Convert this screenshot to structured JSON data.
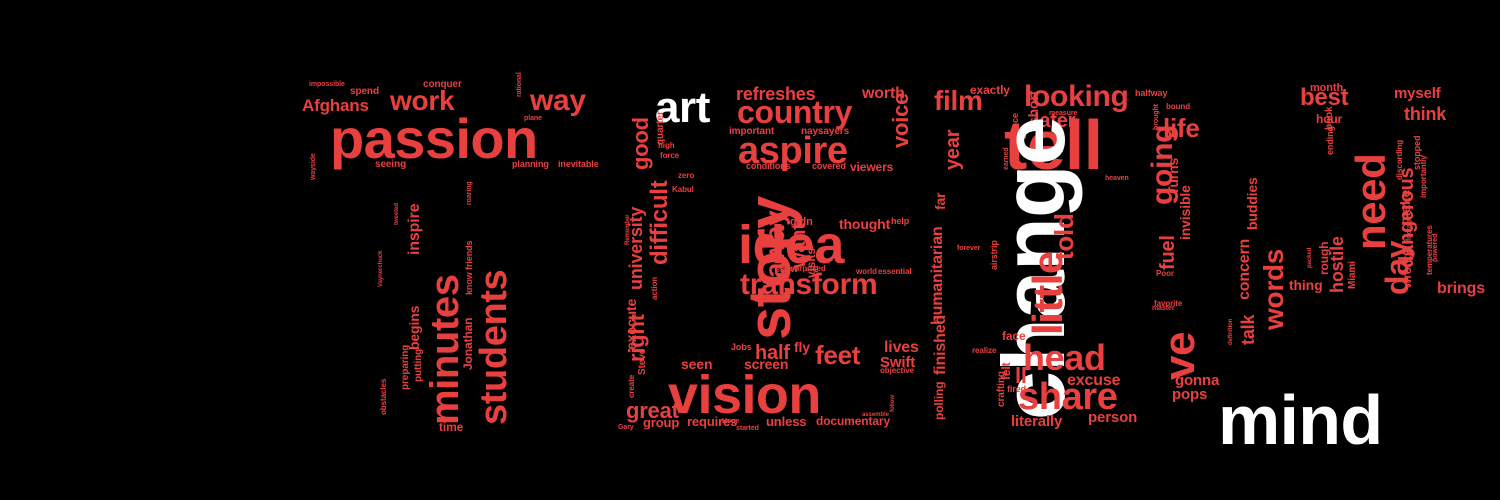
{
  "colors": {
    "background": "#000000",
    "red": "#e8403f",
    "white": "#ffffff"
  },
  "words": [
    {
      "text": "impossible",
      "c": "red"
    },
    {
      "text": "spend",
      "c": "red"
    },
    {
      "text": "conquer",
      "c": "red"
    },
    {
      "text": "Afghans",
      "c": "red"
    },
    {
      "text": "work",
      "c": "red"
    },
    {
      "text": "way",
      "c": "red"
    },
    {
      "text": "rational",
      "c": "red"
    },
    {
      "text": "plane",
      "c": "red"
    },
    {
      "text": "passion",
      "c": "red"
    },
    {
      "text": "wayside",
      "c": "red"
    },
    {
      "text": "seeing",
      "c": "red"
    },
    {
      "text": "planning",
      "c": "red"
    },
    {
      "text": "inevitable",
      "c": "red"
    },
    {
      "text": "minutes",
      "c": "red"
    },
    {
      "text": "students",
      "c": "red"
    },
    {
      "text": "inspire",
      "c": "red"
    },
    {
      "text": "begins",
      "c": "red"
    },
    {
      "text": "preparing",
      "c": "red"
    },
    {
      "text": "putting",
      "c": "red"
    },
    {
      "text": "obstacles",
      "c": "red"
    },
    {
      "text": "Jonathan",
      "c": "red"
    },
    {
      "text": "know friends",
      "c": "red"
    },
    {
      "text": "Vaynerchuck",
      "c": "red"
    },
    {
      "text": "tweeted",
      "c": "red"
    },
    {
      "text": "roaring",
      "c": "red"
    },
    {
      "text": "time",
      "c": "red"
    },
    {
      "text": "art",
      "c": "white"
    },
    {
      "text": "refreshes",
      "c": "red"
    },
    {
      "text": "worth",
      "c": "red"
    },
    {
      "text": "country",
      "c": "red"
    },
    {
      "text": "important",
      "c": "red"
    },
    {
      "text": "naysayers",
      "c": "red"
    },
    {
      "text": "aspire",
      "c": "red"
    },
    {
      "text": "voice",
      "c": "red"
    },
    {
      "text": "conditions",
      "c": "red"
    },
    {
      "text": "covered",
      "c": "red"
    },
    {
      "text": "viewers",
      "c": "red"
    },
    {
      "text": "story",
      "c": "red"
    },
    {
      "text": "difficult",
      "c": "red"
    },
    {
      "text": "good",
      "c": "red"
    },
    {
      "text": "university",
      "c": "red"
    },
    {
      "text": "execute",
      "c": "red"
    },
    {
      "text": "right",
      "c": "red"
    },
    {
      "text": "quarter",
      "c": "red"
    },
    {
      "text": "high",
      "c": "red"
    },
    {
      "text": "force",
      "c": "red"
    },
    {
      "text": "zero",
      "c": "red"
    },
    {
      "text": "Kabul",
      "c": "red"
    },
    {
      "text": "idea",
      "c": "red"
    },
    {
      "text": "transform",
      "c": "red"
    },
    {
      "text": "didn",
      "c": "red"
    },
    {
      "text": "thought",
      "c": "red"
    },
    {
      "text": "help",
      "c": "red"
    },
    {
      "text": "away",
      "c": "red"
    },
    {
      "text": "want",
      "c": "red"
    },
    {
      "text": "visits",
      "c": "red"
    },
    {
      "text": "kind",
      "c": "red"
    },
    {
      "text": "snow",
      "c": "red"
    },
    {
      "text": "surprised",
      "c": "red"
    },
    {
      "text": "world",
      "c": "red"
    },
    {
      "text": "essential",
      "c": "red"
    },
    {
      "text": "half",
      "c": "red"
    },
    {
      "text": "fly",
      "c": "red"
    },
    {
      "text": "feet",
      "c": "red"
    },
    {
      "text": "lives",
      "c": "red"
    },
    {
      "text": "Swift",
      "c": "red"
    },
    {
      "text": "objective",
      "c": "red"
    },
    {
      "text": "Jobs",
      "c": "red"
    },
    {
      "text": "Steve",
      "c": "red"
    },
    {
      "text": "seen",
      "c": "red"
    },
    {
      "text": "screen",
      "c": "red"
    },
    {
      "text": "vision",
      "c": "red"
    },
    {
      "text": "great",
      "c": "red"
    },
    {
      "text": "create",
      "c": "red"
    },
    {
      "text": "group",
      "c": "red"
    },
    {
      "text": "requires",
      "c": "red"
    },
    {
      "text": "unless",
      "c": "red"
    },
    {
      "text": "documentary",
      "c": "red"
    },
    {
      "text": "Gary",
      "c": "red"
    },
    {
      "text": "started",
      "c": "red"
    },
    {
      "text": "Hope",
      "c": "red"
    },
    {
      "text": "assemble",
      "c": "red"
    },
    {
      "text": "follow",
      "c": "red"
    },
    {
      "text": "Remember",
      "c": "red"
    },
    {
      "text": "action",
      "c": "red"
    },
    {
      "text": "film",
      "c": "red"
    },
    {
      "text": "exactly",
      "c": "red"
    },
    {
      "text": "looking",
      "c": "red"
    },
    {
      "text": "halfway",
      "c": "red"
    },
    {
      "text": "later",
      "c": "red"
    },
    {
      "text": "life",
      "c": "red"
    },
    {
      "text": "bound",
      "c": "red"
    },
    {
      "text": "tell",
      "c": "red"
    },
    {
      "text": "going",
      "c": "red"
    },
    {
      "text": "short",
      "c": "red"
    },
    {
      "text": "silence",
      "c": "red"
    },
    {
      "text": "measure",
      "c": "red"
    },
    {
      "text": "change",
      "c": "white"
    },
    {
      "text": "year",
      "c": "red"
    },
    {
      "text": "far",
      "c": "red"
    },
    {
      "text": "humanitarian",
      "c": "red"
    },
    {
      "text": "finished",
      "c": "red"
    },
    {
      "text": "polling",
      "c": "red"
    },
    {
      "text": "little",
      "c": "red"
    },
    {
      "text": "told",
      "c": "red"
    },
    {
      "text": "Turns",
      "c": "red"
    },
    {
      "text": "invisible",
      "c": "red"
    },
    {
      "text": "fuel",
      "c": "red"
    },
    {
      "text": "Poor",
      "c": "red"
    },
    {
      "text": "mind",
      "c": "white"
    },
    {
      "text": "words",
      "c": "red"
    },
    {
      "text": "buddies",
      "c": "red"
    },
    {
      "text": "concern",
      "c": "red"
    },
    {
      "text": "definition",
      "c": "red"
    },
    {
      "text": "ve",
      "c": "red"
    },
    {
      "text": "head",
      "c": "red"
    },
    {
      "text": "share",
      "c": "red"
    },
    {
      "text": "talk",
      "c": "red"
    },
    {
      "text": "gonna",
      "c": "red"
    },
    {
      "text": "pops",
      "c": "red"
    },
    {
      "text": "excuse",
      "c": "red"
    },
    {
      "text": "face",
      "c": "red"
    },
    {
      "text": "crafting",
      "c": "red"
    },
    {
      "text": "fired",
      "c": "red"
    },
    {
      "text": "literally",
      "c": "red"
    },
    {
      "text": "person",
      "c": "red"
    },
    {
      "text": "felt",
      "c": "red"
    },
    {
      "text": "ll",
      "c": "red"
    },
    {
      "text": "realize",
      "c": "red"
    },
    {
      "text": "airstrip",
      "c": "red"
    },
    {
      "text": "forever",
      "c": "red"
    },
    {
      "text": "favorite",
      "c": "red"
    },
    {
      "text": "master",
      "c": "red"
    },
    {
      "text": "heaven",
      "c": "red"
    },
    {
      "text": "brought",
      "c": "red"
    },
    {
      "text": "earned",
      "c": "red"
    },
    {
      "text": "month",
      "c": "red"
    },
    {
      "text": "myself",
      "c": "red"
    },
    {
      "text": "best",
      "c": "red"
    },
    {
      "text": "think",
      "c": "red"
    },
    {
      "text": "hour",
      "c": "red"
    },
    {
      "text": "need",
      "c": "red"
    },
    {
      "text": "book",
      "c": "red"
    },
    {
      "text": "ending",
      "c": "red"
    },
    {
      "text": "make",
      "c": "red"
    },
    {
      "text": "discording",
      "c": "red"
    },
    {
      "text": "stopped",
      "c": "red"
    },
    {
      "text": "importantly",
      "c": "red"
    },
    {
      "text": "dangerous",
      "c": "red"
    },
    {
      "text": "wrong",
      "c": "red"
    },
    {
      "text": "day",
      "c": "red"
    },
    {
      "text": "hostile",
      "c": "red"
    },
    {
      "text": "rough",
      "c": "red"
    },
    {
      "text": "Miami",
      "c": "red"
    },
    {
      "text": "packed",
      "c": "red"
    },
    {
      "text": "thing",
      "c": "red"
    },
    {
      "text": "temperatures",
      "c": "red"
    },
    {
      "text": "powered",
      "c": "red"
    },
    {
      "text": "brings",
      "c": "red"
    },
    {
      "text": "footage",
      "c": "red"
    }
  ]
}
